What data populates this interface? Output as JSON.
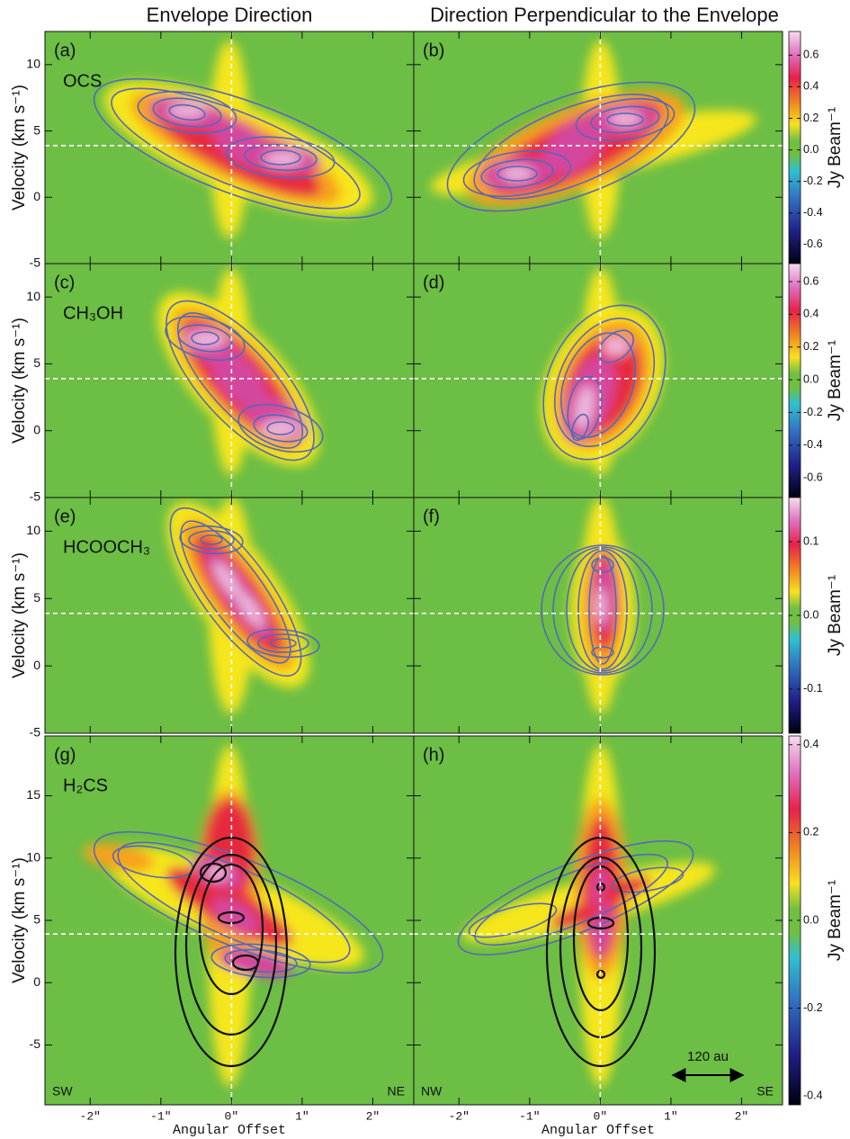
{
  "figure": {
    "column_titles": [
      "Envelope Direction",
      "Direction Perpendicular to the Envelope"
    ]
  },
  "chart_data": [
    {
      "type": "heatmap",
      "label": "(a)",
      "annotation": "OCS",
      "y_label": "Velocity (km s⁻¹)",
      "xlim": [
        -2.64,
        2.58
      ],
      "xticks": [
        -2,
        -1,
        0,
        1,
        2
      ],
      "ylim": [
        -5,
        12.5
      ],
      "yticks": [
        -5,
        0,
        5,
        10
      ],
      "reference_lines": {
        "x": 0,
        "y": 3.9
      }
    },
    {
      "type": "heatmap",
      "label": "(b)",
      "xlim": [
        -2.64,
        2.58
      ],
      "xticks": [
        -2,
        -1,
        0,
        1,
        2
      ],
      "ylim": [
        -5,
        12.5
      ],
      "yticks": [
        -5,
        0,
        5,
        10
      ],
      "reference_lines": {
        "x": 0,
        "y": 3.9
      },
      "colorbar": {
        "label": "Jy Beam⁻¹",
        "clim": [
          -0.72,
          0.75
        ],
        "ticks": [
          -0.6,
          -0.4,
          -0.2,
          {
            "value": 0,
            "label": "0.0"
          },
          0.2,
          0.4,
          0.6
        ]
      }
    },
    {
      "type": "heatmap",
      "label": "(c)",
      "annotation": "CH₃OH",
      "y_label": "Velocity (km s⁻¹)",
      "xlim": [
        -2.64,
        2.58
      ],
      "xticks": [
        -2,
        -1,
        0,
        1,
        2
      ],
      "ylim": [
        -5,
        12.5
      ],
      "yticks": [
        -5,
        0,
        5,
        10
      ],
      "reference_lines": {
        "x": 0,
        "y": 3.9
      }
    },
    {
      "type": "heatmap",
      "label": "(d)",
      "xlim": [
        -2.64,
        2.58
      ],
      "xticks": [
        -2,
        -1,
        0,
        1,
        2
      ],
      "ylim": [
        -5,
        12.5
      ],
      "yticks": [
        -5,
        0,
        5,
        10
      ],
      "reference_lines": {
        "x": 0,
        "y": 3.9
      },
      "colorbar": {
        "label": "Jy Beam⁻¹",
        "clim": [
          -0.72,
          0.71
        ],
        "ticks": [
          -0.6,
          -0.4,
          -0.2,
          {
            "value": 0,
            "label": "0.0"
          },
          0.2,
          0.4,
          0.6
        ]
      }
    },
    {
      "type": "heatmap",
      "label": "(e)",
      "annotation": "HCOOCH₃",
      "y_label": "Velocity (km s⁻¹)",
      "xlim": [
        -2.64,
        2.58
      ],
      "xticks": [
        -2,
        -1,
        0,
        1,
        2
      ],
      "ylim": [
        -5,
        12.5
      ],
      "yticks": [
        -5,
        0,
        5,
        10
      ],
      "reference_lines": {
        "x": 0,
        "y": 3.9
      }
    },
    {
      "type": "heatmap",
      "label": "(f)",
      "xlim": [
        -2.64,
        2.58
      ],
      "xticks": [
        -2,
        -1,
        0,
        1,
        2
      ],
      "ylim": [
        -5,
        12.5
      ],
      "yticks": [
        -5,
        0,
        5,
        10
      ],
      "reference_lines": {
        "x": 0,
        "y": 3.9
      },
      "colorbar": {
        "label": "Jy Beam⁻¹",
        "clim": [
          -0.16,
          0.16
        ],
        "ticks": [
          -0.1,
          {
            "value": 0,
            "label": "0.0"
          },
          0.1
        ]
      }
    },
    {
      "type": "heatmap",
      "label": "(g)",
      "annotation": "H₂CS",
      "y_label": "Velocity (km s⁻¹)",
      "x_label": "Angular Offset",
      "xlim": [
        -2.64,
        2.58
      ],
      "xticks": [
        {
          "value": -2,
          "label": "-2″"
        },
        {
          "value": -1,
          "label": "-1″"
        },
        {
          "value": 0,
          "label": "0″"
        },
        {
          "value": 1,
          "label": "1″"
        },
        {
          "value": 2,
          "label": "2″"
        }
      ],
      "ylim": [
        -9.8,
        19.8
      ],
      "yticks": [
        -5,
        0,
        5,
        10,
        15
      ],
      "reference_lines": {
        "x": 0,
        "y": 3.9
      },
      "corner_labels": [
        "SW",
        "NE"
      ]
    },
    {
      "type": "heatmap",
      "label": "(h)",
      "x_label": "Angular Offset",
      "xlim": [
        -2.64,
        2.58
      ],
      "xticks": [
        {
          "value": -2,
          "label": "-2″"
        },
        {
          "value": -1,
          "label": "-1″"
        },
        {
          "value": 0,
          "label": "0″"
        },
        {
          "value": 1,
          "label": "1″"
        },
        {
          "value": 2,
          "label": "2″"
        }
      ],
      "ylim": [
        -9.8,
        19.8
      ],
      "yticks": [
        -5,
        0,
        5,
        10,
        15
      ],
      "reference_lines": {
        "x": 0,
        "y": 3.9
      },
      "corner_labels": [
        "NW",
        "SE"
      ],
      "scale_bar": "120 au",
      "colorbar": {
        "label": "Jy Beam⁻¹",
        "clim": [
          -0.42,
          0.42
        ],
        "ticks": [
          -0.4,
          -0.2,
          {
            "value": 0,
            "label": "0.0"
          },
          0.2,
          0.4
        ]
      }
    }
  ]
}
